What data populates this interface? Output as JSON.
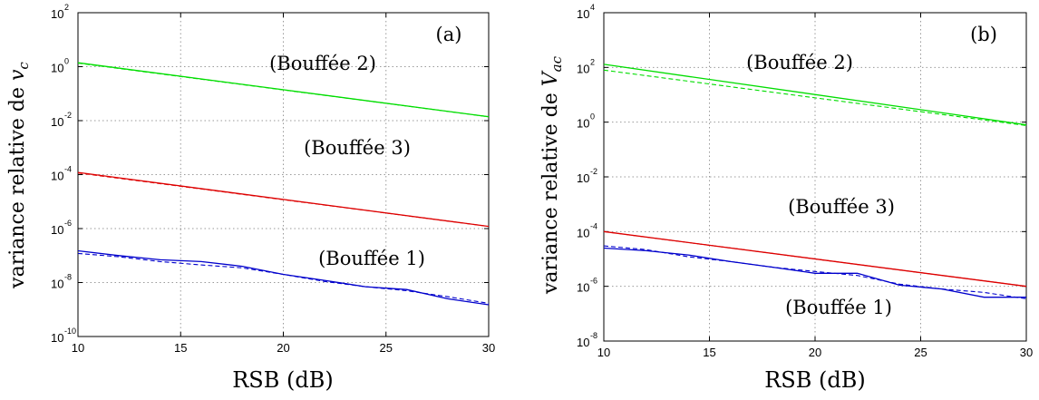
{
  "chart_data": [
    {
      "type": "line",
      "panel_label": "(a)",
      "xlabel": "RSB (dB)",
      "ylabel_text": "variance relative de ",
      "ylabel_var": "v",
      "ylabel_sub": "c",
      "x_range": [
        10,
        30
      ],
      "x_ticks": [
        10,
        15,
        20,
        25,
        30
      ],
      "y_scale": "log",
      "y_exp_range": [
        -10,
        2
      ],
      "y_ticks": [
        -10,
        -8,
        -6,
        -4,
        -2,
        0,
        2
      ],
      "grid": true,
      "series": [
        {
          "color": "#00dd00",
          "annotation": "(Bouffée 2)",
          "x": [
            10,
            30
          ],
          "solid": [
            1.4,
            0.014
          ],
          "dashed": [
            1.35,
            0.014
          ]
        },
        {
          "color": "#dd0000",
          "annotation": "(Bouffée 3)",
          "x": [
            10,
            30
          ],
          "solid": [
            0.00012,
            1.2e-06
          ],
          "dashed": [
            0.000115,
            1.2e-06
          ]
        },
        {
          "color": "#0000cc",
          "annotation": "(Bouffée 1)",
          "x": [
            10,
            12,
            14,
            16,
            18,
            20,
            22,
            24,
            26,
            28,
            30
          ],
          "solid": [
            1.5e-07,
            1e-07,
            7e-08,
            6e-08,
            4e-08,
            2e-08,
            1.2e-08,
            7e-09,
            5.5e-09,
            2.5e-09,
            1.5e-09
          ],
          "dashed": [
            1.2e-07,
            9e-08,
            6e-08,
            4.5e-08,
            3.5e-08,
            2e-08,
            1.1e-08,
            7e-09,
            5e-09,
            3e-09,
            1.7e-09
          ]
        }
      ]
    },
    {
      "type": "line",
      "panel_label": "(b)",
      "xlabel": "RSB (dB)",
      "ylabel_text": "variance relative de ",
      "ylabel_var": "V",
      "ylabel_sub": "ac",
      "x_range": [
        10,
        30
      ],
      "x_ticks": [
        10,
        15,
        20,
        25,
        30
      ],
      "y_scale": "log",
      "y_exp_range": [
        -8,
        4
      ],
      "y_ticks": [
        -8,
        -6,
        -4,
        -2,
        0,
        2,
        4
      ],
      "grid": true,
      "series": [
        {
          "color": "#00dd00",
          "annotation": "(Bouffée 2)",
          "x": [
            10,
            30
          ],
          "solid": [
            130,
            0.8
          ],
          "dashed": [
            80,
            0.75
          ]
        },
        {
          "color": "#dd0000",
          "annotation": "(Bouffée 3)",
          "x": [
            10,
            30
          ],
          "solid": [
            0.0001,
            1e-06
          ],
          "dashed": [
            0.0001,
            1e-06
          ]
        },
        {
          "color": "#0000cc",
          "annotation": "(Bouffée 1)",
          "x": [
            10,
            12,
            14,
            16,
            18,
            20,
            22,
            24,
            26,
            28,
            30
          ],
          "solid": [
            2.5e-05,
            2e-05,
            1.4e-05,
            8e-06,
            5e-06,
            3e-06,
            3e-06,
            1.1e-06,
            8e-07,
            4e-07,
            4e-07
          ],
          "dashed": [
            3e-05,
            2.2e-05,
            1.2e-05,
            8e-06,
            5e-06,
            3.5e-06,
            2.5e-06,
            1.2e-06,
            8e-07,
            6e-07,
            3.5e-07
          ]
        }
      ]
    }
  ]
}
